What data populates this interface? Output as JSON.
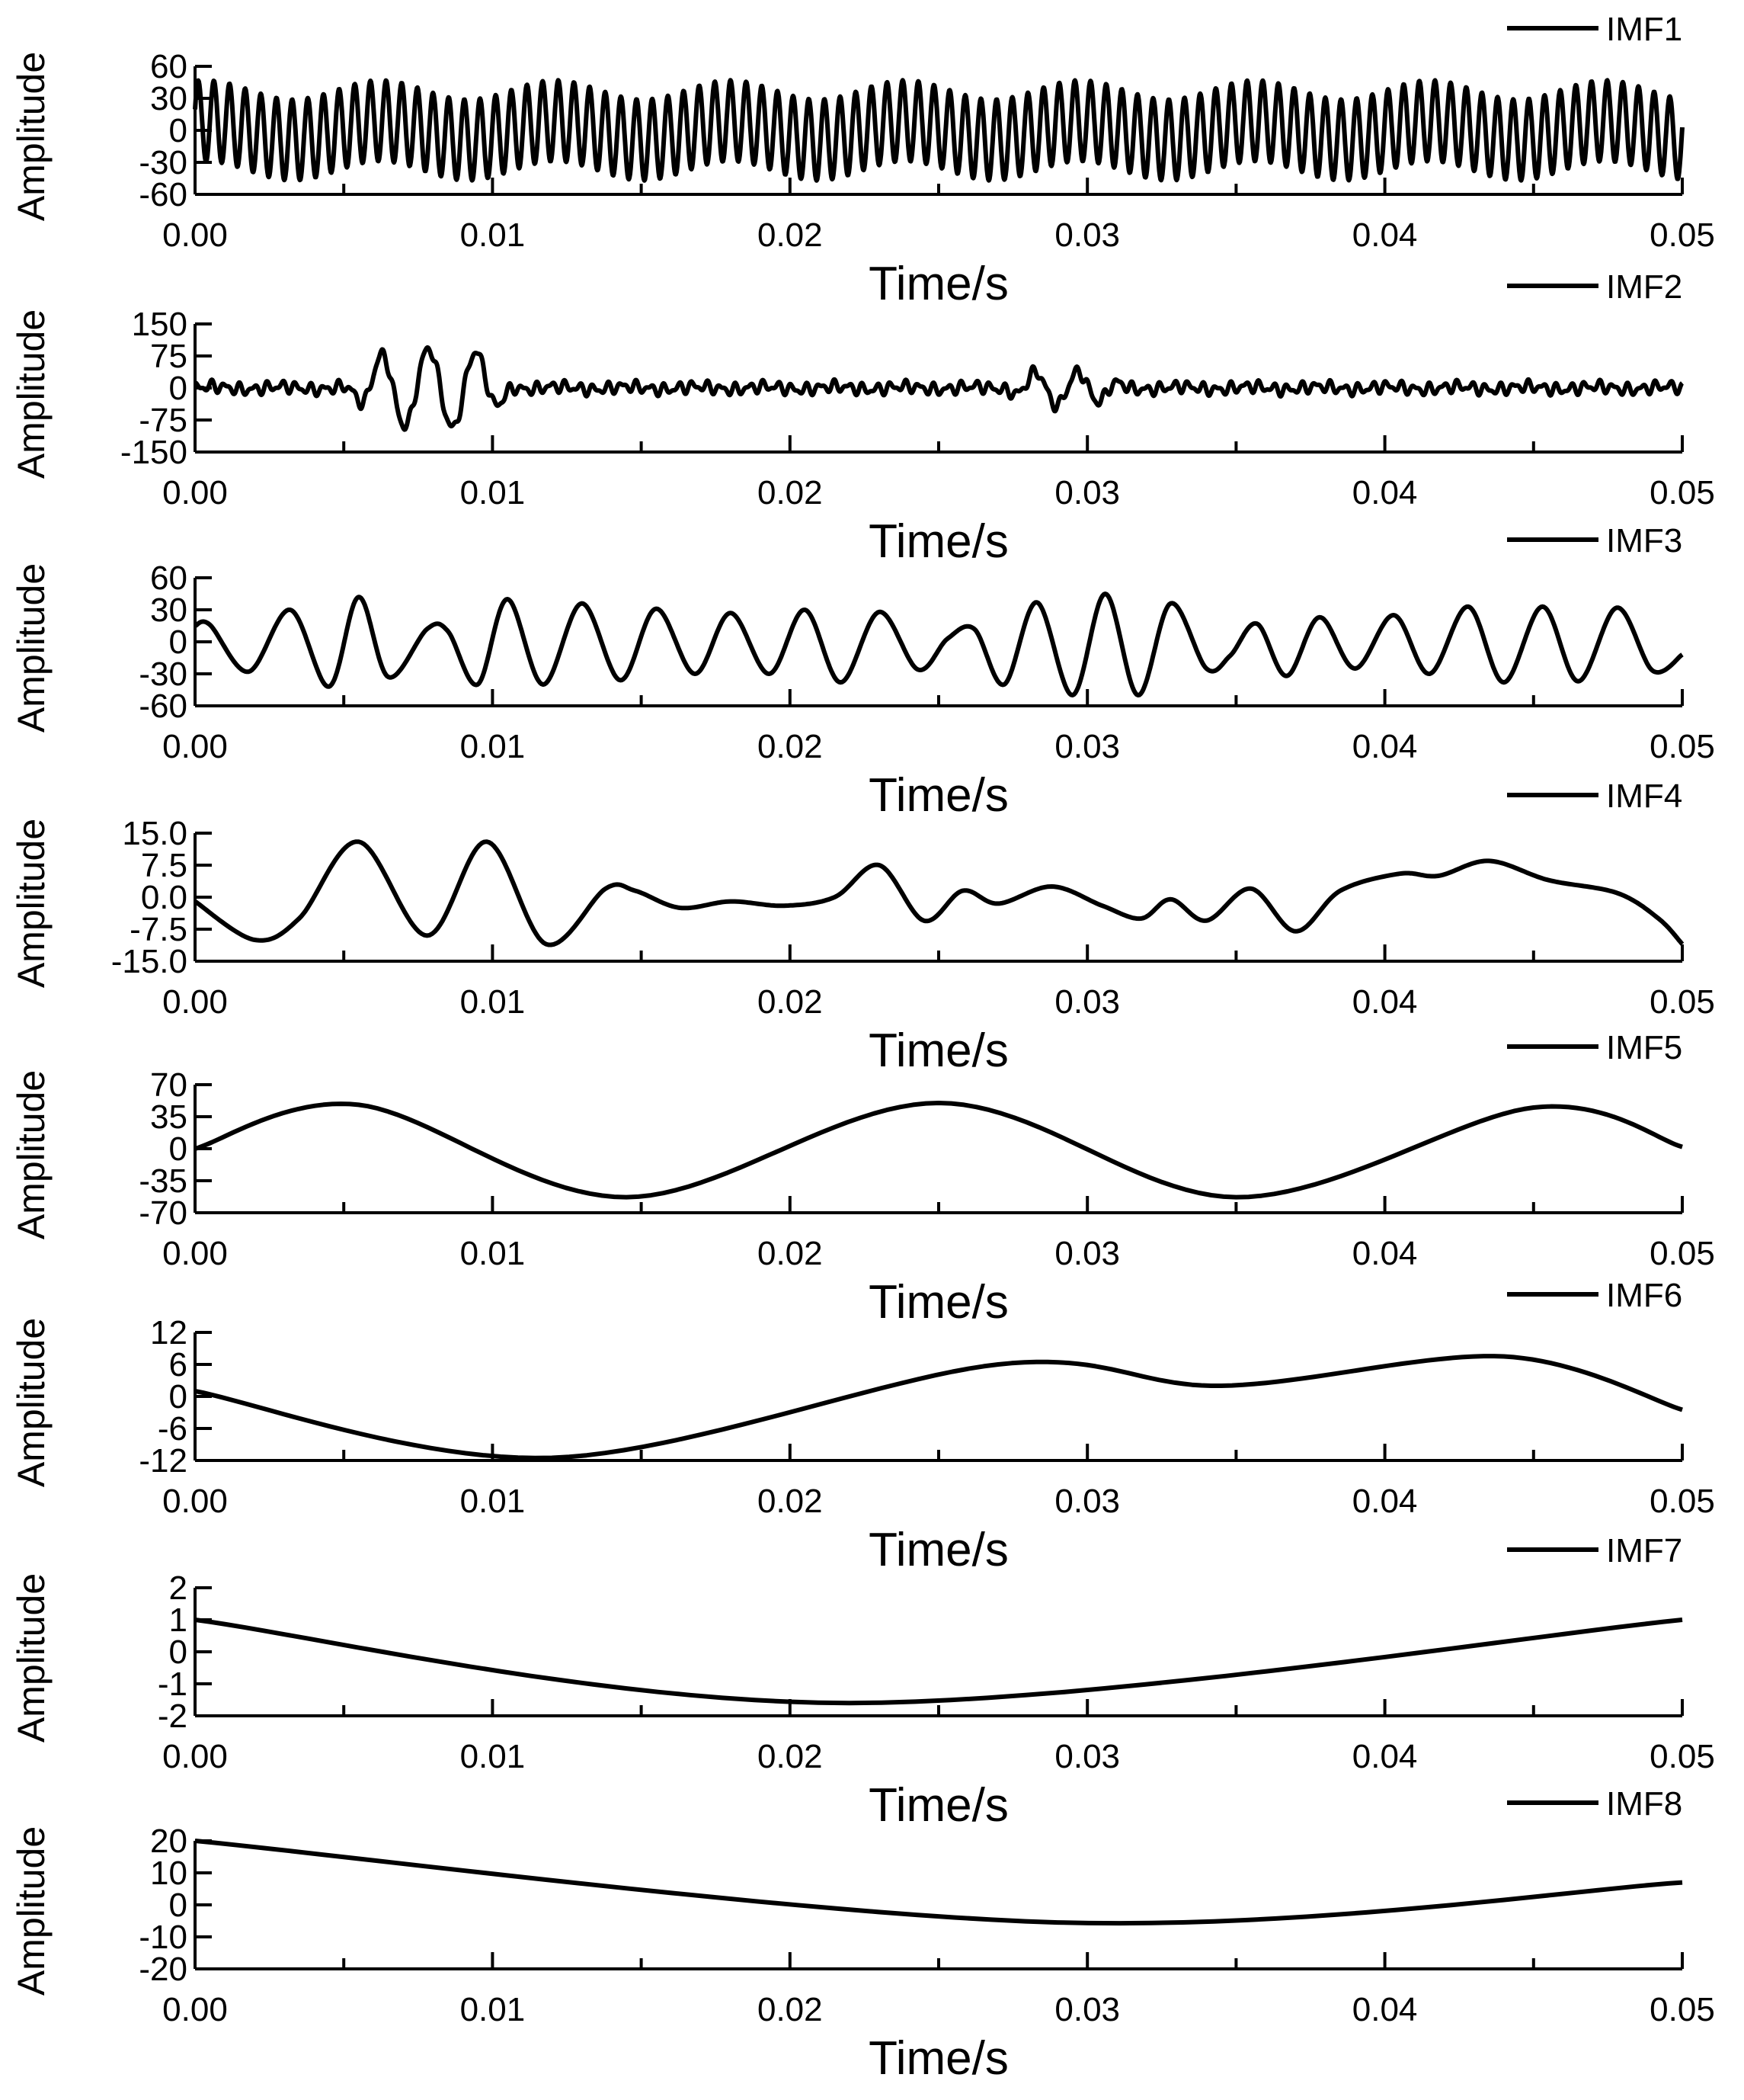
{
  "chart_data": [
    {
      "type": "line",
      "series_name": "IMF1",
      "legend": "IMF1",
      "xlabel": "Time/s",
      "ylabel": "Amplitude",
      "xlim": [
        0,
        0.05
      ],
      "ylim": [
        -60,
        60
      ],
      "yticks": [
        60,
        30,
        0,
        -30,
        -60
      ],
      "ytick_labels": [
        "60",
        "30",
        "0",
        "-30",
        "-60"
      ],
      "xticks": [
        0,
        0.01,
        0.02,
        0.03,
        0.04,
        0.05
      ],
      "xtick_labels": [
        "0.00",
        "0.01",
        "0.02",
        "0.03",
        "0.04",
        "0.05"
      ],
      "gen": {
        "kind": "sines",
        "comps": [
          [
            38,
            1900,
            0.3
          ],
          [
            9,
            170,
            1.2
          ]
        ]
      }
    },
    {
      "type": "line",
      "series_name": "IMF2",
      "legend": "IMF2",
      "xlabel": "Time/s",
      "ylabel": "Amplitude",
      "xlim": [
        0,
        0.05
      ],
      "ylim": [
        -150,
        150
      ],
      "yticks": [
        150,
        75,
        0,
        -75,
        -150
      ],
      "ytick_labels": [
        "150",
        "75",
        "0",
        "-75",
        "-150"
      ],
      "xticks": [
        0,
        0.01,
        0.02,
        0.03,
        0.04,
        0.05
      ],
      "xtick_labels": [
        "0.00",
        "0.01",
        "0.02",
        "0.03",
        "0.04",
        "0.05"
      ],
      "gen": {
        "kind": "imf2"
      }
    },
    {
      "type": "line",
      "series_name": "IMF3",
      "legend": "IMF3",
      "xlabel": "Time/s",
      "ylabel": "Amplitude",
      "xlim": [
        0,
        0.05
      ],
      "ylim": [
        -60,
        60
      ],
      "yticks": [
        60,
        30,
        0,
        -30,
        -60
      ],
      "ytick_labels": [
        "60",
        "30",
        "0",
        "-30",
        "-60"
      ],
      "xticks": [
        0,
        0.01,
        0.02,
        0.03,
        0.04,
        0.05
      ],
      "xtick_labels": [
        "0.00",
        "0.01",
        "0.02",
        "0.03",
        "0.04",
        "0.05"
      ],
      "gen": {
        "kind": "points",
        "points": [
          [
            0,
            15
          ],
          [
            0.0005,
            16
          ],
          [
            0.0018,
            -28
          ],
          [
            0.0032,
            30
          ],
          [
            0.0045,
            -42
          ],
          [
            0.0055,
            42
          ],
          [
            0.0065,
            -33
          ],
          [
            0.0078,
            12
          ],
          [
            0.0085,
            10
          ],
          [
            0.0095,
            -40
          ],
          [
            0.0105,
            40
          ],
          [
            0.0117,
            -40
          ],
          [
            0.013,
            36
          ],
          [
            0.0143,
            -36
          ],
          [
            0.0155,
            31
          ],
          [
            0.0168,
            -30
          ],
          [
            0.018,
            27
          ],
          [
            0.0193,
            -30
          ],
          [
            0.0205,
            30
          ],
          [
            0.0217,
            -38
          ],
          [
            0.023,
            28
          ],
          [
            0.0243,
            -26
          ],
          [
            0.0253,
            3
          ],
          [
            0.0262,
            12
          ],
          [
            0.0272,
            -40
          ],
          [
            0.0283,
            37
          ],
          [
            0.0295,
            -50
          ],
          [
            0.0306,
            45
          ],
          [
            0.0317,
            -50
          ],
          [
            0.0328,
            36
          ],
          [
            0.034,
            -25
          ],
          [
            0.0348,
            -13
          ],
          [
            0.0357,
            17
          ],
          [
            0.0367,
            -32
          ],
          [
            0.0378,
            23
          ],
          [
            0.039,
            -25
          ],
          [
            0.0403,
            25
          ],
          [
            0.0415,
            -30
          ],
          [
            0.0428,
            33
          ],
          [
            0.044,
            -38
          ],
          [
            0.0453,
            33
          ],
          [
            0.0465,
            -37
          ],
          [
            0.0478,
            32
          ],
          [
            0.049,
            -27
          ],
          [
            0.05,
            -12
          ]
        ]
      }
    },
    {
      "type": "line",
      "series_name": "IMF4",
      "legend": "IMF4",
      "xlabel": "Time/s",
      "ylabel": "Amplitude",
      "xlim": [
        0,
        0.05
      ],
      "ylim": [
        -15,
        15
      ],
      "yticks": [
        15,
        7.5,
        0,
        -7.5,
        -15
      ],
      "ytick_labels": [
        "15.0",
        "7.5",
        "0.0",
        "-7.5",
        "-15.0"
      ],
      "xticks": [
        0,
        0.01,
        0.02,
        0.03,
        0.04,
        0.05
      ],
      "xtick_labels": [
        "0.00",
        "0.01",
        "0.02",
        "0.03",
        "0.04",
        "0.05"
      ],
      "gen": {
        "kind": "points",
        "points": [
          [
            0,
            -1
          ],
          [
            0.002,
            -10
          ],
          [
            0.0035,
            -5
          ],
          [
            0.0055,
            13
          ],
          [
            0.0078,
            -9
          ],
          [
            0.0098,
            13
          ],
          [
            0.0118,
            -11
          ],
          [
            0.0138,
            2
          ],
          [
            0.0148,
            1.5
          ],
          [
            0.0163,
            -2.5
          ],
          [
            0.018,
            -1
          ],
          [
            0.0198,
            -2
          ],
          [
            0.0215,
            0
          ],
          [
            0.023,
            7.5
          ],
          [
            0.0245,
            -5.5
          ],
          [
            0.0258,
            1.5
          ],
          [
            0.027,
            -1.5
          ],
          [
            0.0288,
            2.5
          ],
          [
            0.0305,
            -2
          ],
          [
            0.0318,
            -5
          ],
          [
            0.0328,
            -0.5
          ],
          [
            0.034,
            -5.5
          ],
          [
            0.0355,
            2
          ],
          [
            0.037,
            -8
          ],
          [
            0.0385,
            1.5
          ],
          [
            0.0405,
            5.5
          ],
          [
            0.0418,
            5
          ],
          [
            0.0435,
            8.5
          ],
          [
            0.0455,
            4
          ],
          [
            0.0478,
            1
          ],
          [
            0.0492,
            -5
          ],
          [
            0.05,
            -11
          ]
        ]
      }
    },
    {
      "type": "line",
      "series_name": "IMF5",
      "legend": "IMF5",
      "xlabel": "Time/s",
      "ylabel": "Amplitude",
      "xlim": [
        0,
        0.05
      ],
      "ylim": [
        -70,
        70
      ],
      "yticks": [
        70,
        35,
        0,
        -35,
        -70
      ],
      "ytick_labels": [
        "70",
        "35",
        "0",
        "-35",
        "-70"
      ],
      "xticks": [
        0,
        0.01,
        0.02,
        0.03,
        0.04,
        0.05
      ],
      "xtick_labels": [
        "0.00",
        "0.01",
        "0.02",
        "0.03",
        "0.04",
        "0.05"
      ],
      "gen": {
        "kind": "points",
        "points": [
          [
            0,
            0
          ],
          [
            0.0055,
            48
          ],
          [
            0.0145,
            -53
          ],
          [
            0.025,
            50
          ],
          [
            0.035,
            -53
          ],
          [
            0.045,
            45
          ],
          [
            0.05,
            2
          ]
        ]
      }
    },
    {
      "type": "line",
      "series_name": "IMF6",
      "legend": "IMF6",
      "xlabel": "Time/s",
      "ylabel": "Amplitude",
      "xlim": [
        0,
        0.05
      ],
      "ylim": [
        -12,
        12
      ],
      "yticks": [
        12,
        6,
        0,
        -6,
        -12
      ],
      "ytick_labels": [
        "12",
        "6",
        "0",
        "-6",
        "-12"
      ],
      "xticks": [
        0,
        0.01,
        0.02,
        0.03,
        0.04,
        0.05
      ],
      "xtick_labels": [
        "0.00",
        "0.01",
        "0.02",
        "0.03",
        "0.04",
        "0.05"
      ],
      "gen": {
        "kind": "points",
        "points": [
          [
            0,
            1
          ],
          [
            0.012,
            -11.5
          ],
          [
            0.027,
            6
          ],
          [
            0.0345,
            2
          ],
          [
            0.044,
            7.5
          ],
          [
            0.05,
            -2.5
          ]
        ]
      }
    },
    {
      "type": "line",
      "series_name": "IMF7",
      "legend": "IMF7",
      "xlabel": "Time/s",
      "ylabel": "Amplitude",
      "xlim": [
        0,
        0.05
      ],
      "ylim": [
        -2,
        2
      ],
      "yticks": [
        2,
        1,
        0,
        -1,
        -2
      ],
      "ytick_labels": [
        "2",
        "1",
        "0",
        "-1",
        "-2"
      ],
      "xticks": [
        0,
        0.01,
        0.02,
        0.03,
        0.04,
        0.05
      ],
      "xtick_labels": [
        "0.00",
        "0.01",
        "0.02",
        "0.03",
        "0.04",
        "0.05"
      ],
      "gen": {
        "kind": "points",
        "points": [
          [
            0,
            1
          ],
          [
            0.022,
            -1.6
          ],
          [
            0.05,
            1
          ]
        ]
      }
    },
    {
      "type": "line",
      "series_name": "IMF8",
      "legend": "IMF8",
      "xlabel": "Time/s",
      "ylabel": "Amplitude",
      "xlim": [
        0,
        0.05
      ],
      "ylim": [
        -20,
        20
      ],
      "yticks": [
        20,
        10,
        0,
        -10,
        -20
      ],
      "ytick_labels": [
        "20",
        "10",
        "0",
        "-10",
        "-20"
      ],
      "xticks": [
        0,
        0.01,
        0.02,
        0.03,
        0.04,
        0.05
      ],
      "xtick_labels": [
        "0.00",
        "0.01",
        "0.02",
        "0.03",
        "0.04",
        "0.05"
      ],
      "gen": {
        "kind": "points",
        "points": [
          [
            0,
            20
          ],
          [
            0.029,
            -5.5
          ],
          [
            0.05,
            7
          ]
        ]
      }
    }
  ]
}
